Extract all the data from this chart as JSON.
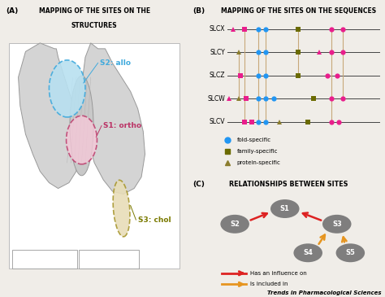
{
  "panel_A_title_line1": "MAPPING OF THE SITES ON THE",
  "panel_A_title_line2": "STRUCTURES",
  "panel_B_title": "MAPPING OF THE SITES ON THE SEQUENCES",
  "panel_C_title": "RELATIONSHIPS BETWEEN SITES",
  "bg_color": "#f0ede8",
  "sequences": [
    "SLCX",
    "SLCY",
    "SLCZ",
    "SLCW",
    "SLCV"
  ],
  "fold_color": "#2196F3",
  "family_color": "#6b6b00",
  "protein_tri_color": "#8b7d2e",
  "magenta_color": "#e91e8c",
  "node_color": "#757575",
  "red_arrow": "#dd2222",
  "orange_arrow": "#e69520",
  "s2_fill": "#b8e0f0",
  "s2_edge": "#40aadd",
  "s1_fill": "#f5c8d8",
  "s1_edge": "#bb3366",
  "s3_fill": "#e8ddb8",
  "s3_edge": "#a89830",
  "footer": "Trends in Pharmacological Sciences",
  "struct_color": "#d4d4d4",
  "struct_edge": "#999999"
}
